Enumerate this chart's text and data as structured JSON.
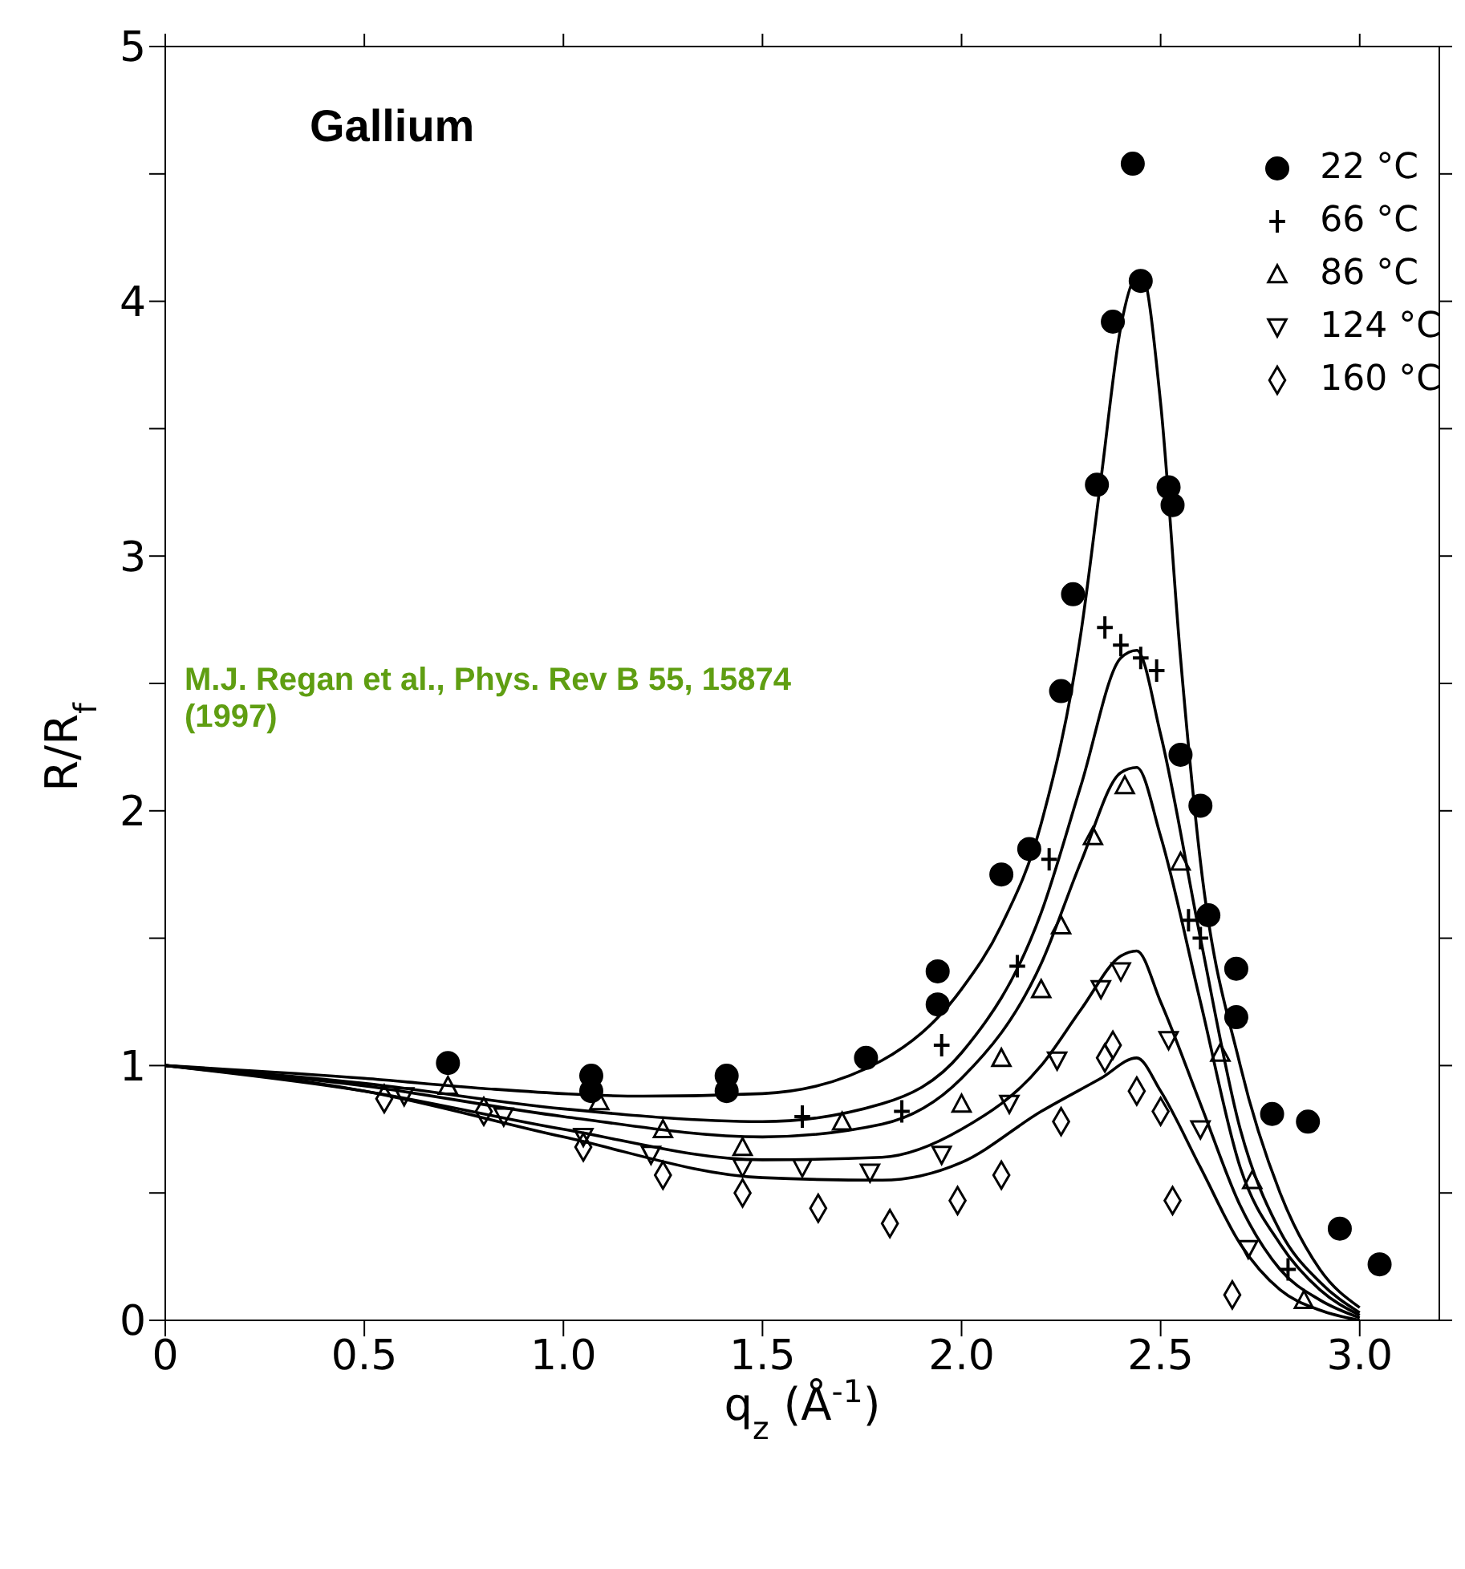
{
  "chart_data": {
    "type": "scatter",
    "xlabel": "q$_{z}$ (Å$^{-1}$)",
    "ylabel": "R/R$_{f}$",
    "annotations": [
      "Gallium",
      "M.J. Regan et al., Phys. Rev B 55, 15874 (1997)"
    ],
    "xlim": [
      0,
      3.2
    ],
    "xticks": [
      0,
      0.5,
      {
        "value": 1,
        "label": "1.0"
      },
      1.5,
      {
        "value": 2,
        "label": "2.0"
      },
      2.5,
      {
        "value": 3,
        "label": "3.0"
      }
    ],
    "ylim": [
      0,
      5
    ],
    "yticks": [
      0,
      {
        "value": 0.5,
        "label": null
      },
      1,
      {
        "value": 1.5,
        "label": null
      },
      2,
      {
        "value": 2.5,
        "label": null
      },
      3,
      {
        "value": 3.5,
        "label": null
      },
      4,
      {
        "value": 4.5,
        "label": null
      },
      5
    ],
    "legend": "top right",
    "series": [
      {
        "name": "22 °C",
        "color": "#000000",
        "marker": "circle",
        "x": [
          0.71,
          1.07,
          1.07,
          1.41,
          1.41,
          1.76,
          1.94,
          1.94,
          2.1,
          2.17,
          2.25,
          2.28,
          2.34,
          2.38,
          2.43,
          2.45,
          2.52,
          2.53,
          2.55,
          2.6,
          2.62,
          2.69,
          2.69,
          2.78,
          2.87,
          2.95,
          3.05
        ],
        "values": [
          1.01,
          0.96,
          0.9,
          0.96,
          0.9,
          1.03,
          1.37,
          1.24,
          1.75,
          1.85,
          2.47,
          2.85,
          3.28,
          3.92,
          4.54,
          4.08,
          3.27,
          3.2,
          2.22,
          2.02,
          1.59,
          1.38,
          1.19,
          0.81,
          0.78,
          0.36,
          0.22
        ]
      },
      {
        "name": "66 °C",
        "color": "#000000",
        "marker": "cross",
        "x": [
          1.6,
          1.85,
          1.95,
          2.14,
          2.22,
          2.36,
          2.4,
          2.45,
          2.49,
          2.57,
          2.6,
          2.82
        ],
        "values": [
          0.8,
          0.82,
          1.08,
          1.39,
          1.81,
          2.72,
          2.65,
          2.6,
          2.55,
          1.57,
          1.5,
          0.2
        ]
      },
      {
        "name": "86 °C",
        "color": "#000000",
        "marker": "triangle",
        "x": [
          0.71,
          1.09,
          1.25,
          1.45,
          1.7,
          2.0,
          2.1,
          2.2,
          2.25,
          2.33,
          2.41,
          2.55,
          2.65,
          2.73,
          2.86
        ],
        "values": [
          0.92,
          0.86,
          0.75,
          0.68,
          0.78,
          0.85,
          1.03,
          1.3,
          1.55,
          1.9,
          2.1,
          1.8,
          1.05,
          0.55,
          0.08
        ]
      },
      {
        "name": "124 °C",
        "color": "#000000",
        "marker": "triangle-down",
        "x": [
          0.6,
          0.85,
          1.05,
          1.22,
          1.45,
          1.6,
          1.77,
          1.95,
          2.12,
          2.24,
          2.35,
          2.4,
          2.52,
          2.6,
          2.72
        ],
        "values": [
          0.88,
          0.8,
          0.72,
          0.65,
          0.6,
          0.6,
          0.58,
          0.65,
          0.85,
          1.02,
          1.3,
          1.37,
          1.1,
          0.75,
          0.28
        ]
      },
      {
        "name": "160 °C",
        "color": "#000000",
        "marker": "diamond",
        "x": [
          0.55,
          0.8,
          1.05,
          1.25,
          1.45,
          1.64,
          1.82,
          1.99,
          2.1,
          2.25,
          2.36,
          2.38,
          2.44,
          2.5,
          2.53,
          2.68
        ],
        "values": [
          0.87,
          0.82,
          0.68,
          0.57,
          0.5,
          0.44,
          0.38,
          0.47,
          0.57,
          0.78,
          1.03,
          1.08,
          0.9,
          0.82,
          0.47,
          0.1
        ]
      },
      {
        "type": "line",
        "color": "#000000",
        "marker": "none",
        "x": [
          0,
          0.5,
          0.8,
          1.2,
          1.5,
          1.8,
          2.0,
          2.1,
          2.2,
          2.3,
          2.35,
          2.4,
          2.45,
          2.5,
          2.55,
          2.6,
          2.7,
          2.8,
          2.9,
          3.0
        ],
        "values": [
          1,
          0.95,
          0.91,
          0.88,
          0.89,
          1.02,
          1.3,
          1.55,
          1.95,
          2.7,
          3.3,
          3.9,
          4.12,
          3.6,
          2.6,
          1.8,
          1.0,
          0.5,
          0.2,
          0.05
        ]
      },
      {
        "type": "line",
        "color": "#000000",
        "marker": "none",
        "x": [
          0,
          0.5,
          1.0,
          1.5,
          1.8,
          2.0,
          2.2,
          2.3,
          2.4,
          2.44,
          2.5,
          2.6,
          2.7,
          2.8,
          2.9,
          3.0
        ],
        "values": [
          1,
          0.93,
          0.83,
          0.78,
          0.85,
          1.05,
          1.6,
          2.1,
          2.6,
          2.63,
          2.3,
          1.5,
          0.75,
          0.35,
          0.15,
          0.03
        ]
      },
      {
        "type": "line",
        "color": "#000000",
        "marker": "none",
        "x": [
          0,
          0.5,
          1.0,
          1.5,
          1.8,
          2.0,
          2.2,
          2.3,
          2.4,
          2.44,
          2.5,
          2.6,
          2.7,
          2.8,
          2.9,
          3.0
        ],
        "values": [
          1,
          0.92,
          0.8,
          0.72,
          0.77,
          0.95,
          1.4,
          1.8,
          2.15,
          2.17,
          1.9,
          1.25,
          0.6,
          0.3,
          0.12,
          0.02
        ]
      },
      {
        "type": "line",
        "color": "#000000",
        "marker": "none",
        "x": [
          0,
          0.5,
          1.0,
          1.5,
          1.8,
          2.0,
          2.2,
          2.3,
          2.4,
          2.44,
          2.5,
          2.6,
          2.7,
          2.8,
          2.9,
          3.0
        ],
        "values": [
          1,
          0.9,
          0.75,
          0.63,
          0.64,
          0.75,
          1.0,
          1.22,
          1.43,
          1.45,
          1.25,
          0.85,
          0.45,
          0.2,
          0.08,
          0.01
        ]
      },
      {
        "type": "line",
        "color": "#000000",
        "marker": "none",
        "x": [
          0,
          0.5,
          1.0,
          1.5,
          1.8,
          2.0,
          2.2,
          2.35,
          2.44,
          2.5,
          2.6,
          2.7,
          2.8,
          2.9,
          3.0
        ],
        "values": [
          1,
          0.9,
          0.72,
          0.56,
          0.55,
          0.62,
          0.82,
          0.95,
          1.03,
          0.9,
          0.6,
          0.3,
          0.12,
          0.04,
          0
        ]
      }
    ]
  }
}
